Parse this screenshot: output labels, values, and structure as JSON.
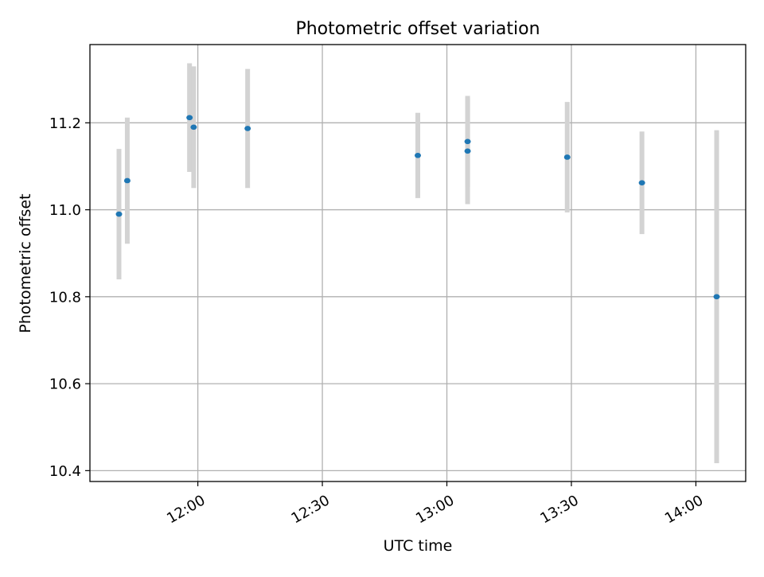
{
  "chart_data": {
    "type": "scatter",
    "title": "Photometric offset variation",
    "xlabel": "UTC time",
    "ylabel": "Photometric offset",
    "x_scale": "time",
    "xlim": [
      "11:34",
      "14:12"
    ],
    "ylim": [
      10.375,
      11.38
    ],
    "x_ticks": [
      "12:00",
      "12:30",
      "13:00",
      "13:30",
      "14:00"
    ],
    "y_ticks": [
      10.4,
      10.6,
      10.8,
      11.0,
      11.2
    ],
    "y_tick_labels": [
      "10.4",
      "10.6",
      "10.8",
      "11.0",
      "11.2"
    ],
    "grid": true,
    "legend": "none",
    "colors": {
      "marker": "#1f77b4",
      "errorbar": "#d3d3d3",
      "grid": "#b0b0b0",
      "axes": "#000000"
    },
    "series": [
      {
        "points": [
          {
            "x": "11:41",
            "y": 10.99,
            "err": 0.15
          },
          {
            "x": "11:43",
            "y": 11.067,
            "err": 0.145
          },
          {
            "x": "11:58",
            "y": 11.212,
            "err": 0.125
          },
          {
            "x": "11:59",
            "y": 11.19,
            "err": 0.14
          },
          {
            "x": "12:12",
            "y": 11.187,
            "err": 0.137
          },
          {
            "x": "12:53",
            "y": 11.125,
            "err": 0.098
          },
          {
            "x": "13:05",
            "y": 11.157,
            "err": 0.105
          },
          {
            "x": "13:05",
            "y": 11.135,
            "err": 0.122
          },
          {
            "x": "13:29",
            "y": 11.121,
            "err": 0.127
          },
          {
            "x": "13:47",
            "y": 11.062,
            "err": 0.118
          },
          {
            "x": "14:05",
            "y": 10.8,
            "err": 0.383
          }
        ]
      }
    ]
  }
}
